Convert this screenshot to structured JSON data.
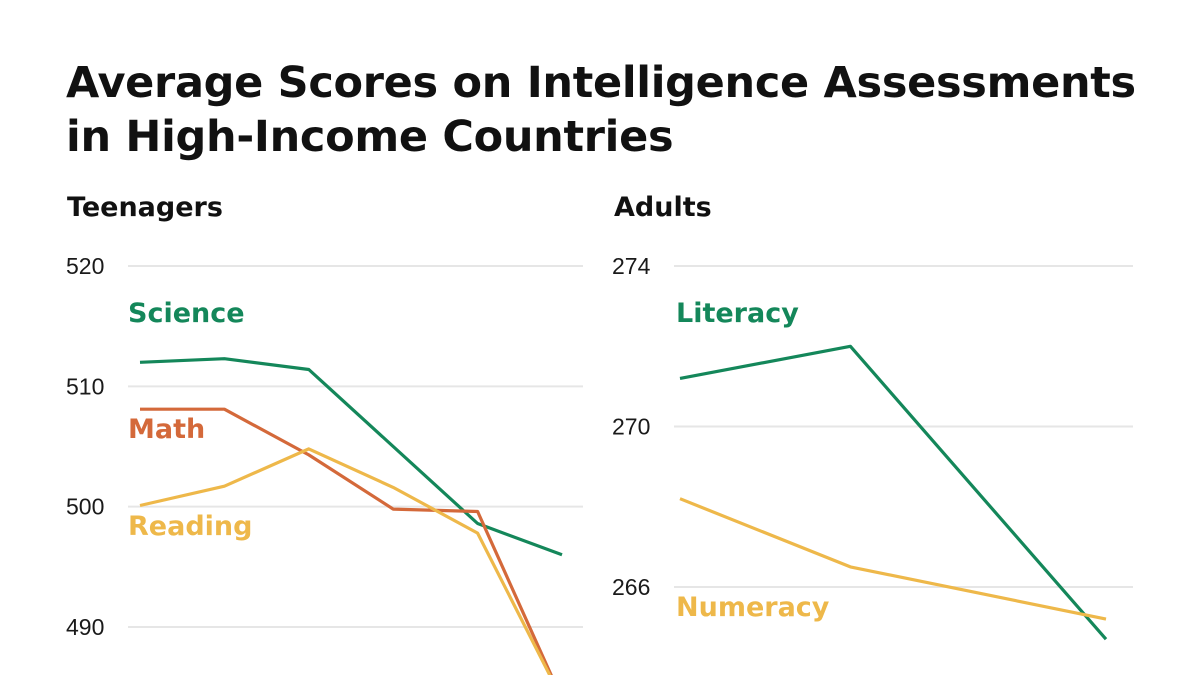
{
  "title_lines": [
    "Average Scores on Intelligence Assessments",
    "in High-Income Countries"
  ],
  "colors": {
    "green": "#14875a",
    "orange": "#d4693a",
    "yellow": "#eeb84a",
    "grid": "#e6e6e6"
  },
  "chart_data": [
    {
      "type": "line",
      "title": "Teenagers",
      "ylim": [
        484,
        521
      ],
      "yticks": [
        520,
        510,
        500,
        490
      ],
      "x": [
        1,
        2,
        3,
        4,
        5,
        6
      ],
      "series": [
        {
          "name": "Science",
          "color": "green",
          "values": [
            512.0,
            512.3,
            511.4,
            null,
            498.6,
            496.0
          ]
        },
        {
          "name": "Math",
          "color": "orange",
          "values": [
            508.1,
            508.1,
            504.3,
            499.8,
            499.6,
            484.0
          ]
        },
        {
          "name": "Reading",
          "color": "yellow",
          "values": [
            500.1,
            501.7,
            504.8,
            501.6,
            497.8,
            484.0
          ]
        }
      ],
      "grid": true
    },
    {
      "type": "line",
      "title": "Adults",
      "ylim": [
        264,
        274
      ],
      "yticks": [
        274,
        270,
        266
      ],
      "x": [
        1,
        2,
        3,
        4,
        5,
        6
      ],
      "series": [
        {
          "name": "Literacy",
          "color": "green",
          "values": [
            271.2,
            null,
            272.0,
            null,
            null,
            264.7
          ]
        },
        {
          "name": "Numeracy",
          "color": "yellow",
          "values": [
            268.2,
            null,
            266.5,
            null,
            null,
            265.2
          ]
        }
      ],
      "grid": true
    }
  ]
}
